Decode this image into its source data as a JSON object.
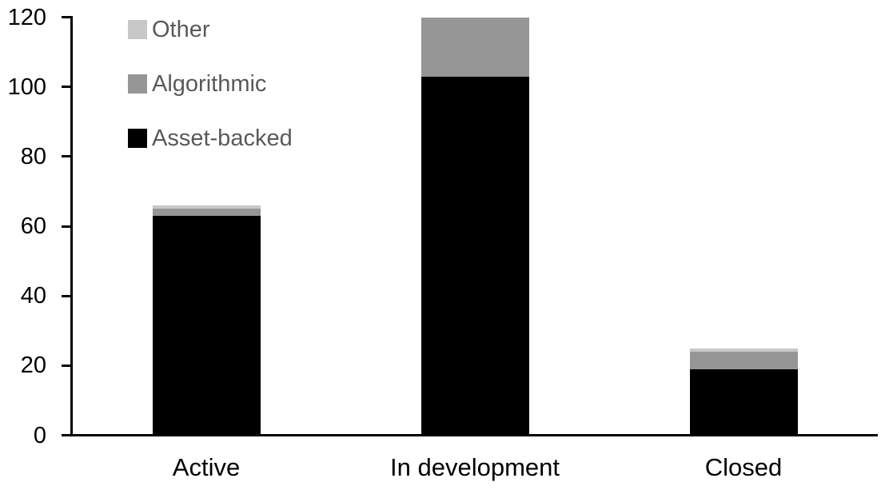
{
  "chart_data": {
    "type": "bar",
    "subtype": "stacked",
    "title": "",
    "categories": [
      "Active",
      "In development",
      "Closed"
    ],
    "series": [
      {
        "name": "Asset-backed",
        "color": "#000000",
        "values": [
          63,
          103,
          19
        ]
      },
      {
        "name": "Algorithmic",
        "color": "#969696",
        "values": [
          2,
          17,
          5
        ]
      },
      {
        "name": "Other",
        "color": "#c8c8c8",
        "values": [
          1,
          0,
          1
        ]
      }
    ],
    "yticks": [
      0,
      20,
      40,
      60,
      80,
      100,
      120
    ],
    "ylim": [
      0,
      120
    ],
    "xlabel": "",
    "ylabel": "",
    "grid": false,
    "legend_position": "top-left",
    "legend_order": [
      "Other",
      "Algorithmic",
      "Asset-backed"
    ]
  },
  "colors": {
    "axis": "#000000",
    "axis_tick_label": "#000000",
    "category_label": "#000000",
    "legend_text": "#595959",
    "background": "#ffffff"
  }
}
